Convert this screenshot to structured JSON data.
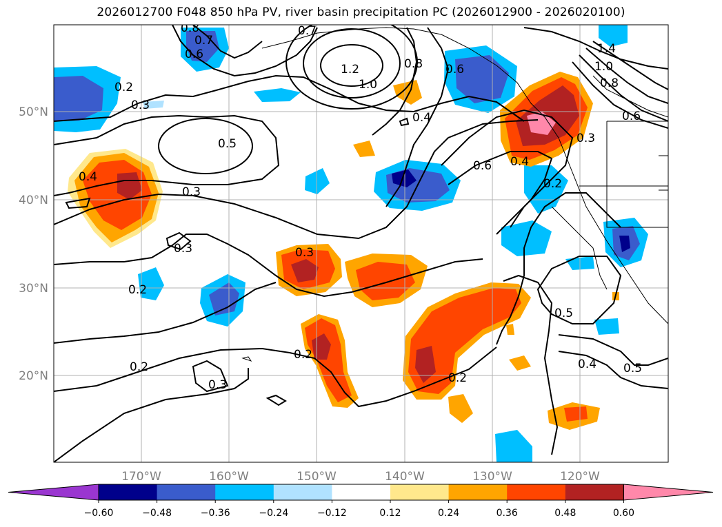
{
  "title": "2026012700 F048 850 hPa PV, river basin precipitation PC (2026012900 - 2026020100)",
  "map": {
    "longitude_labels": [
      "170°W",
      "160°W",
      "150°W",
      "140°W",
      "130°W",
      "120°W"
    ],
    "latitude_labels": [
      "50°N",
      "40°N",
      "30°N",
      "20°N"
    ],
    "pv_contour_labels": [
      "0.8",
      "0.7",
      "0.6",
      "0.2",
      "0.3",
      "0.7",
      "1.2",
      "1.0",
      "0.8",
      "0.6",
      "0.4",
      "1.4",
      "1.0",
      "0.8",
      "0.6",
      "0.5",
      "0.4",
      "0.3",
      "0.6",
      "0.4",
      "0.3",
      "0.2",
      "0.3",
      "0.3",
      "0.2",
      "0.2",
      "0.5",
      "0.4",
      "0.5",
      "0.3",
      "0.2",
      "0.2"
    ]
  },
  "colorbar": {
    "ticks": [
      "−0.60",
      "−0.48",
      "−0.36",
      "−0.24",
      "−0.12",
      "0.12",
      "0.24",
      "0.36",
      "0.48",
      "0.60"
    ],
    "colors": [
      "#9a36d0",
      "#00008b",
      "#3a5ccc",
      "#00bfff",
      "#b0e2ff",
      "#ffffff",
      "#ffe88c",
      "#ffa500",
      "#ff4500",
      "#b22222",
      "#ff88aa"
    ],
    "extend": "both"
  }
}
